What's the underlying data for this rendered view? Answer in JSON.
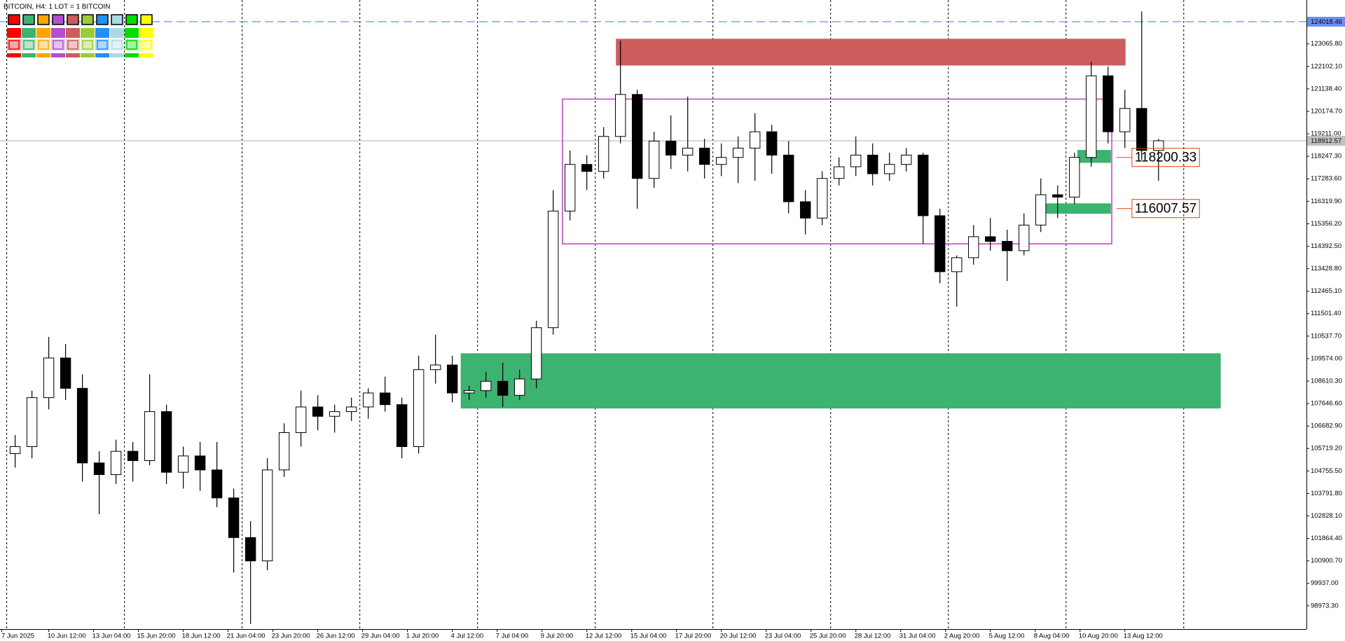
{
  "chart_data": {
    "type": "candlestick",
    "title": "BITCOIN, H4:  1 LOT = 1 BITCOIN",
    "xlim": [
      0.6,
      78.3
    ],
    "ylim": [
      97976,
      124950
    ],
    "x": [
      1.5,
      2.5,
      3.5,
      4.5,
      5.5,
      6.5,
      7.5,
      8.5,
      9.5,
      10.5,
      11.5,
      12.5,
      13.5,
      14.5,
      15.5,
      16.5,
      17.5,
      18.5,
      19.5,
      20.5,
      21.5,
      22.5,
      23.5,
      24.5,
      25.5,
      26.5,
      27.5,
      28.5,
      29.5,
      30.5,
      31.5,
      32.5,
      33.5,
      34.5,
      35.5,
      36.5,
      37.5,
      38.5,
      39.5,
      40.5,
      41.5,
      42.5,
      43.5,
      44.5,
      45.5,
      46.5,
      47.5,
      48.5,
      49.5,
      50.5,
      51.5,
      52.5,
      53.5,
      54.5,
      55.5,
      56.5,
      57.5,
      58.5,
      59.5,
      60.5,
      61.5,
      62.5,
      63.5,
      64.5,
      65.5,
      66.5,
      67.5,
      68.5,
      69.5
    ],
    "open": [
      105500,
      105800,
      107900,
      109600,
      108300,
      105100,
      104600,
      105600,
      105200,
      107300,
      104700,
      105400,
      104800,
      103600,
      101900,
      100900,
      104800,
      106400,
      107500,
      107100,
      107300,
      107500,
      108100,
      107600,
      105800,
      109100,
      109300,
      108100,
      108200,
      108600,
      108000,
      108700,
      110900,
      115900,
      117900,
      117600,
      119100,
      120900,
      117300,
      118900,
      118300,
      118600,
      117900,
      118200,
      118600,
      119300,
      118300,
      116300,
      115600,
      117300,
      117800,
      118300,
      117500,
      117900,
      118300,
      115700,
      113300,
      113900,
      114800,
      114600,
      114200,
      115300,
      116600,
      116500,
      118200,
      121700,
      119300,
      120300,
      118500
    ],
    "high": [
      106300,
      108200,
      110500,
      110200,
      108900,
      105600,
      106100,
      106000,
      108900,
      107600,
      105800,
      106000,
      106000,
      104000,
      102600,
      105300,
      106800,
      108200,
      108000,
      107600,
      107900,
      108300,
      108800,
      107900,
      109700,
      110600,
      109700,
      108400,
      109000,
      109400,
      109100,
      111200,
      116800,
      118500,
      118300,
      119500,
      123200,
      121100,
      119300,
      120000,
      120800,
      119000,
      118800,
      119100,
      120100,
      119600,
      118900,
      116800,
      117600,
      118200,
      119100,
      118800,
      118400,
      118600,
      118400,
      116000,
      114000,
      115300,
      115600,
      115100,
      115800,
      117300,
      117000,
      118400,
      122300,
      122100,
      121100,
      124457,
      119000
    ],
    "low": [
      104900,
      105300,
      107400,
      107800,
      104300,
      102900,
      104200,
      104300,
      105000,
      104200,
      104000,
      103900,
      103200,
      100400,
      98200,
      100500,
      104500,
      105800,
      106500,
      106400,
      106900,
      107000,
      107300,
      105300,
      105500,
      108500,
      107700,
      107800,
      107900,
      107500,
      107800,
      108300,
      110600,
      115500,
      116800,
      117300,
      118800,
      116000,
      116900,
      117700,
      117600,
      117300,
      117400,
      117100,
      117200,
      117500,
      115800,
      114900,
      115300,
      117000,
      117400,
      117000,
      117200,
      117600,
      114500,
      112800,
      111800,
      113600,
      114200,
      112900,
      114000,
      115000,
      115600,
      116200,
      117800,
      118800,
      118600,
      118100,
      117200
    ],
    "close": [
      105800,
      107900,
      109600,
      108300,
      105100,
      104600,
      105600,
      105200,
      107300,
      104700,
      105400,
      104800,
      103600,
      101900,
      100900,
      104800,
      106400,
      107500,
      107100,
      107300,
      107500,
      108100,
      107600,
      105800,
      109100,
      109300,
      108100,
      108200,
      108600,
      108000,
      108700,
      110900,
      115900,
      117900,
      117600,
      119100,
      120900,
      117300,
      118900,
      118300,
      118600,
      117900,
      118200,
      118600,
      119300,
      118300,
      116300,
      115600,
      117300,
      117800,
      118300,
      117500,
      117900,
      118300,
      115700,
      113300,
      113900,
      114800,
      114600,
      114200,
      115300,
      116600,
      116500,
      118200,
      121700,
      119300,
      120300,
      118500,
      118913
    ],
    "yticks": [
      {
        "value": 123065.8,
        "label": "123065.80"
      },
      {
        "value": 122102.1,
        "label": "122102.10"
      },
      {
        "value": 121138.4,
        "label": "121138.40"
      },
      {
        "value": 120174.7,
        "label": "120174.70"
      },
      {
        "value": 119211,
        "label": "119211.00"
      },
      {
        "value": 118247.3,
        "label": "118247.30"
      },
      {
        "value": 117283.6,
        "label": "117283.60"
      },
      {
        "value": 116319.9,
        "label": "116319.90"
      },
      {
        "value": 115356.2,
        "label": "115356.20"
      },
      {
        "value": 114392.5,
        "label": "114392.50"
      },
      {
        "value": 113428.8,
        "label": "113428.80"
      },
      {
        "value": 112465.1,
        "label": "112465.10"
      },
      {
        "value": 111501.4,
        "label": "111501.40"
      },
      {
        "value": 110537.7,
        "label": "110537.70"
      },
      {
        "value": 109574,
        "label": "109574.00"
      },
      {
        "value": 108610.3,
        "label": "108610.30"
      },
      {
        "value": 107646.6,
        "label": "107646.60"
      },
      {
        "value": 106682.9,
        "label": "106682.90"
      },
      {
        "value": 105719.2,
        "label": "105719.20"
      },
      {
        "value": 104755.5,
        "label": "104755.50"
      },
      {
        "value": 103791.8,
        "label": "103791.80"
      },
      {
        "value": 102828.1,
        "label": "102828.10"
      },
      {
        "value": 101864.4,
        "label": "101864.40"
      },
      {
        "value": 100900.7,
        "label": "100900.70"
      },
      {
        "value": 99937,
        "label": "99937.00"
      },
      {
        "value": 98973.3,
        "label": "98973.30"
      }
    ],
    "xticks": [
      {
        "value": 0.7,
        "label": "7 Jun 2025"
      },
      {
        "value": 3.5,
        "label": "10 Jun 12:00"
      },
      {
        "value": 6.1667,
        "label": "13 Jun 04:00"
      },
      {
        "value": 8.8333,
        "label": "15 Jun 20:00"
      },
      {
        "value": 11.5,
        "label": "18 Jun 12:00"
      },
      {
        "value": 14.1667,
        "label": "21 Jun 04:00"
      },
      {
        "value": 16.8333,
        "label": "23 Jun 20:00"
      },
      {
        "value": 19.5,
        "label": "26 Jun 12:00"
      },
      {
        "value": 22.1667,
        "label": "29 Jun 04:00"
      },
      {
        "value": 24.8333,
        "label": "1 Jul 20:00"
      },
      {
        "value": 27.5,
        "label": "4 Jul 12:00"
      },
      {
        "value": 30.1667,
        "label": "7 Jul 04:00"
      },
      {
        "value": 32.8333,
        "label": "9 Jul 20:00"
      },
      {
        "value": 35.5,
        "label": "12 Jul 12:00"
      },
      {
        "value": 38.1667,
        "label": "15 Jul 04:00"
      },
      {
        "value": 40.8333,
        "label": "17 Jul 20:00"
      },
      {
        "value": 43.5,
        "label": "20 Jul 12:00"
      },
      {
        "value": 46.1667,
        "label": "23 Jul 04:00"
      },
      {
        "value": 48.8333,
        "label": "25 Jul 20:00"
      },
      {
        "value": 51.5,
        "label": "28 Jul 12:00"
      },
      {
        "value": 54.1667,
        "label": "31 Jul 04:00"
      },
      {
        "value": 56.8333,
        "label": "2 Aug 20:00"
      },
      {
        "value": 59.5,
        "label": "5 Aug 12:00"
      },
      {
        "value": 62.1667,
        "label": "8 Aug 04:00"
      },
      {
        "value": 64.8333,
        "label": "10 Aug 20:00"
      },
      {
        "value": 67.5,
        "label": "13 Aug 12:00"
      }
    ],
    "xgrid": [
      1,
      8,
      15,
      22,
      29,
      36,
      43,
      50,
      57,
      64,
      71
    ],
    "levels": [
      {
        "value": 124018.46,
        "color": "#6a8ff0",
        "dashed": true
      },
      {
        "value": 118912.57,
        "color": "#c0c0c0",
        "dashed": false
      }
    ],
    "zones": [
      {
        "color": "#cd5c5c",
        "filled": true,
        "x": [
          37.23,
          67.54
        ],
        "y": [
          122142,
          123288
        ]
      },
      {
        "color": "#3cb371",
        "filled": true,
        "x": [
          28.0,
          73.2
        ],
        "y": [
          107436,
          109801
        ]
      },
      {
        "color": "#c040c0",
        "filled": false,
        "x": [
          34.05,
          66.72
        ],
        "y": [
          114494,
          120701
        ]
      },
      {
        "color": "#3cb371",
        "filled": true,
        "x": [
          64.67,
          66.67
        ],
        "y": [
          117967,
          118521
        ]
      },
      {
        "color": "#3cb371",
        "filled": true,
        "x": [
          62.51,
          66.67
        ],
        "y": [
          115787,
          116230
        ]
      }
    ],
    "price_labels": [
      {
        "value": 118200.33,
        "x": 66.67,
        "color": "#e0401a"
      },
      {
        "value": 116007.57,
        "x": 66.67,
        "color": "#e0401a"
      }
    ],
    "bull_color": "#ffffff",
    "bear_color": "#000000"
  }
}
